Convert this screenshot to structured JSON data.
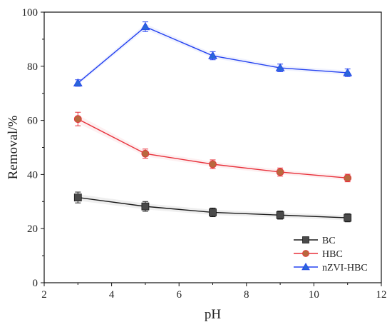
{
  "chart_data": {
    "type": "line",
    "title": "",
    "xlabel": "pH",
    "ylabel": "Removal/%",
    "xlim": [
      2,
      12
    ],
    "ylim": [
      0,
      100
    ],
    "xticks": [
      2,
      4,
      6,
      8,
      10,
      12
    ],
    "yticks": [
      0,
      20,
      40,
      60,
      80,
      100
    ],
    "grid": false,
    "legend_position": "bottom-right",
    "x": [
      3,
      5,
      7,
      9,
      11
    ],
    "series": [
      {
        "name": "BC",
        "values": [
          31.5,
          28.2,
          26.0,
          25.0,
          24.0
        ],
        "errors": [
          2.0,
          1.8,
          1.6,
          1.5,
          1.5
        ],
        "line_color": "#1a1a1a",
        "marker_color": "#4a4a4a",
        "marker": "square"
      },
      {
        "name": "HBC",
        "values": [
          60.5,
          47.7,
          43.8,
          40.9,
          38.7
        ],
        "errors": [
          2.5,
          1.7,
          1.6,
          1.5,
          1.4
        ],
        "line_color": "#e8303a",
        "marker_color": "#b8683e",
        "marker": "circle"
      },
      {
        "name": "nZVI-HBC",
        "values": [
          73.8,
          94.6,
          83.9,
          79.4,
          77.6
        ],
        "errors": [
          1.2,
          1.8,
          1.5,
          1.4,
          1.4
        ],
        "line_color": "#2442f0",
        "marker_color": "#2a66d8",
        "marker": "triangle"
      }
    ]
  }
}
